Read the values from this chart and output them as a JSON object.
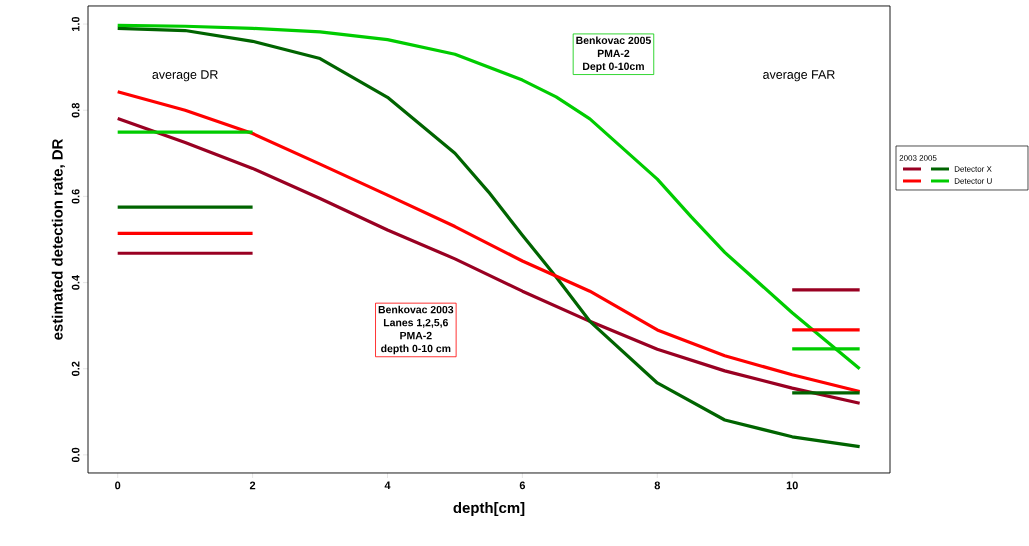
{
  "chart_data": {
    "type": "line",
    "xlabel": "depth[cm]",
    "ylabel": "estimated detection rate, DR",
    "legend_title": "2003  2005",
    "legend": "right",
    "xlim": [
      -0.44,
      11.45
    ],
    "ylim": [
      -0.042,
      1.042
    ],
    "xticks": [
      0,
      2,
      4,
      6,
      8,
      10
    ],
    "yticks": [
      {
        "value": 0,
        "label": "0.0"
      },
      {
        "value": 0.2,
        "label": "0.2"
      },
      {
        "value": 0.4,
        "label": "0.4"
      },
      {
        "value": 0.6,
        "label": "0.6"
      },
      {
        "value": 0.8,
        "label": "0.8"
      },
      {
        "value": 1,
        "label": "1.0"
      }
    ],
    "annotations": [
      "average DR",
      "average FAR",
      "Benkovac 2003",
      "Lanes 1,2,5,6",
      "PMA-2",
      "depth 0-10 cm",
      "Benkovac 2005",
      "PMA-2",
      "Dept 0-10cm"
    ],
    "series": [
      {
        "color": "#990022",
        "x": [
          0,
          1,
          2,
          3,
          4,
          5,
          6,
          7,
          8,
          9,
          10,
          11
        ],
        "values": [
          0.781,
          0.725,
          0.665,
          0.595,
          0.522,
          0.455,
          0.38,
          0.31,
          0.245,
          0.195,
          0.155,
          0.12
        ]
      },
      {
        "name": "Detector X",
        "color": "#006400",
        "x": [
          0,
          1,
          2,
          3,
          4,
          5,
          5.5,
          6,
          6.5,
          7,
          8,
          9,
          10,
          11
        ],
        "values": [
          0.99,
          0.985,
          0.96,
          0.92,
          0.83,
          0.7,
          0.61,
          0.51,
          0.413,
          0.31,
          0.167,
          0.081,
          0.042,
          0.019
        ]
      },
      {
        "color": "#ff0000",
        "x": [
          0,
          1,
          2,
          3,
          4,
          5,
          6,
          7,
          8,
          9,
          10,
          11
        ],
        "values": [
          0.843,
          0.8,
          0.746,
          0.675,
          0.603,
          0.53,
          0.45,
          0.38,
          0.29,
          0.23,
          0.186,
          0.147
        ]
      },
      {
        "name": "Detector U",
        "color": "#00cc00",
        "x": [
          0,
          1,
          2,
          3,
          4,
          5,
          6,
          6.5,
          7,
          8,
          8.5,
          9,
          10,
          11
        ],
        "values": [
          0.997,
          0.995,
          0.99,
          0.982,
          0.964,
          0.93,
          0.87,
          0.831,
          0.78,
          0.64,
          0.553,
          0.47,
          0.33,
          0.2
        ]
      },
      {
        "color": "#990022",
        "x": [
          0,
          2
        ],
        "values": [
          0.468,
          0.468
        ]
      },
      {
        "color": "#006400",
        "x": [
          0,
          2
        ],
        "values": [
          0.575,
          0.575
        ]
      },
      {
        "color": "#ff0000",
        "x": [
          0,
          2
        ],
        "values": [
          0.514,
          0.514
        ]
      },
      {
        "color": "#00cc00",
        "x": [
          0,
          2
        ],
        "values": [
          0.749,
          0.749
        ]
      },
      {
        "color": "#990022",
        "x": [
          10,
          11
        ],
        "values": [
          0.383,
          0.383
        ]
      },
      {
        "color": "#006400",
        "x": [
          10,
          11
        ],
        "values": [
          0.144,
          0.144
        ]
      },
      {
        "color": "#ff0000",
        "x": [
          10,
          11
        ],
        "values": [
          0.29,
          0.29
        ]
      },
      {
        "color": "#00cc00",
        "x": [
          10,
          11
        ],
        "values": [
          0.246,
          0.246
        ]
      }
    ]
  }
}
